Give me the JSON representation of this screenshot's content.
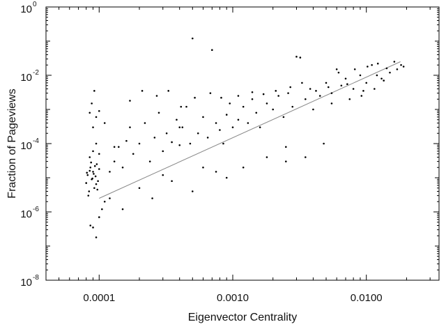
{
  "chart_data": {
    "type": "scatter",
    "title": "",
    "xlabel": "Eigenvector Centrality",
    "ylabel": "Fraction of Pageviews",
    "xscale": "log",
    "yscale": "log",
    "xlim": [
      4e-05,
      0.035
    ],
    "ylim": [
      1e-08,
      1
    ],
    "grid": false,
    "legend": "none",
    "x_ticks": [
      {
        "value": 0.0001,
        "label": "0.0001"
      },
      {
        "value": 0.001,
        "label": "0.0010"
      },
      {
        "value": 0.01,
        "label": "0.0100"
      }
    ],
    "y_ticks": [
      {
        "value": 1,
        "base": "10",
        "exp": "0"
      },
      {
        "value": 0.01,
        "base": "10",
        "exp": "-2"
      },
      {
        "value": 0.0001,
        "base": "10",
        "exp": "-4"
      },
      {
        "value": 1e-06,
        "base": "10",
        "exp": "-6"
      },
      {
        "value": 1e-08,
        "base": "10",
        "exp": "-8"
      }
    ],
    "fit_line": {
      "x": [
        0.0001,
        0.018
      ],
      "y": [
        2.5e-06,
        0.025
      ],
      "color": "#888888"
    },
    "series": [
      {
        "marker_color": "#000000",
        "points": [
          [
            8e-05,
            7e-06
          ],
          [
            8.2e-05,
            1.2e-05
          ],
          [
            8.4e-05,
            4e-06
          ],
          [
            8.6e-05,
            2e-05
          ],
          [
            8.8e-05,
            9e-06
          ],
          [
            9e-05,
            1.5e-05
          ],
          [
            9.2e-05,
            5e-06
          ],
          [
            9.4e-05,
            1.1e-05
          ],
          [
            9.6e-05,
            2.5e-05
          ],
          [
            9.8e-05,
            8e-06
          ],
          [
            0.0001,
            1.8e-05
          ],
          [
            8.3e-05,
            3e-06
          ],
          [
            8.7e-05,
            2.8e-05
          ],
          [
            9.1e-05,
            1.3e-05
          ],
          [
            9.5e-05,
            6.5e-06
          ],
          [
            8.5e-05,
            1.6e-05
          ],
          [
            8.9e-05,
            9.5e-06
          ],
          [
            9.3e-05,
            2.2e-05
          ],
          [
            8.1e-05,
            1.4e-05
          ],
          [
            9.7e-05,
            4.5e-06
          ],
          [
            8.5e-05,
            4e-05
          ],
          [
            9e-05,
            6e-05
          ],
          [
            9.5e-05,
            0.0001
          ],
          [
            0.0001,
            5e-05
          ],
          [
            9e-05,
            0.0003
          ],
          [
            8.5e-05,
            0.0008
          ],
          [
            9.5e-05,
            0.0006
          ],
          [
            0.0001,
            0.0009
          ],
          [
            8.8e-05,
            0.0015
          ],
          [
            9.2e-05,
            0.0035
          ],
          [
            8.6e-05,
            4e-07
          ],
          [
            9e-05,
            3.5e-07
          ],
          [
            9.5e-05,
            1.8e-07
          ],
          [
            0.0001,
            7e-07
          ],
          [
            0.000105,
            1.2e-06
          ],
          [
            0.00011,
            2e-06
          ],
          [
            0.00012,
            1.5e-05
          ],
          [
            0.00013,
            3e-05
          ],
          [
            0.00014,
            8e-05
          ],
          [
            0.00015,
            2e-05
          ],
          [
            0.00016,
            0.00012
          ],
          [
            0.00017,
            0.0003
          ],
          [
            0.00018,
            5e-05
          ],
          [
            0.0002,
            0.0001
          ],
          [
            0.00022,
            0.0004
          ],
          [
            0.00024,
            3e-05
          ],
          [
            0.00026,
            0.00015
          ],
          [
            0.00028,
            0.0008
          ],
          [
            0.0003,
            6e-05
          ],
          [
            0.00032,
            0.0002
          ],
          [
            0.00035,
            0.00011
          ],
          [
            0.00038,
            0.0005
          ],
          [
            0.0004,
            9e-05
          ],
          [
            0.00042,
            0.0003
          ],
          [
            0.00045,
            0.0012
          ],
          [
            0.00048,
            0.0001
          ],
          [
            0.0005,
            0.12
          ],
          [
            0.00055,
            0.0002
          ],
          [
            0.0006,
            0.0006
          ],
          [
            0.00065,
            0.00015
          ],
          [
            0.0007,
            0.055
          ],
          [
            0.00075,
            0.0004
          ],
          [
            0.0008,
            0.00025
          ],
          [
            0.00085,
            0.0001
          ],
          [
            0.0009,
            0.0007
          ],
          [
            0.001,
            0.0003
          ],
          [
            0.0011,
            0.0005
          ],
          [
            0.0012,
            0.0012
          ],
          [
            0.0013,
            0.0004
          ],
          [
            0.0014,
            0.002
          ],
          [
            0.0015,
            0.0008
          ],
          [
            0.0016,
            0.0003
          ],
          [
            0.0018,
            0.0015
          ],
          [
            0.002,
            0.001
          ],
          [
            0.0022,
            0.0025
          ],
          [
            0.0024,
            0.0006
          ],
          [
            0.0026,
            0.003
          ],
          [
            0.0028,
            0.0012
          ],
          [
            0.003,
            0.035
          ],
          [
            0.0032,
            0.033
          ],
          [
            0.0035,
            0.002
          ],
          [
            0.0038,
            0.004
          ],
          [
            0.004,
            0.001
          ],
          [
            0.0045,
            0.0025
          ],
          [
            0.0048,
            0.0001
          ],
          [
            0.005,
            0.006
          ],
          [
            0.0055,
            0.003
          ],
          [
            0.006,
            0.015
          ],
          [
            0.0065,
            0.005
          ],
          [
            0.007,
            0.008
          ],
          [
            0.008,
            0.004
          ],
          [
            0.009,
            0.01
          ],
          [
            0.01,
            0.006
          ],
          [
            0.011,
            0.02
          ],
          [
            0.012,
            0.01
          ],
          [
            0.013,
            0.008
          ],
          [
            0.015,
            0.012
          ],
          [
            0.017,
            0.015
          ],
          [
            0.019,
            0.018
          ],
          [
            0.0025,
            3e-05
          ],
          [
            0.0018,
            4e-05
          ],
          [
            0.0012,
            2e-05
          ],
          [
            0.0009,
            1e-05
          ],
          [
            0.00075,
            1.5e-05
          ],
          [
            0.0006,
            2e-05
          ],
          [
            0.0005,
            4e-06
          ],
          [
            0.00035,
            8e-06
          ],
          [
            0.00025,
            2.5e-06
          ],
          [
            0.00015,
            1.2e-06
          ],
          [
            0.00012,
            2.5e-06
          ],
          [
            0.0002,
            5e-06
          ],
          [
            0.0003,
            1.2e-05
          ],
          [
            0.0004,
            0.0003
          ],
          [
            0.0025,
            8e-05
          ],
          [
            0.0035,
            4e-05
          ],
          [
            0.0055,
            0.0015
          ],
          [
            0.0075,
            0.002
          ],
          [
            0.0095,
            0.0035
          ],
          [
            0.0115,
            0.004
          ],
          [
            0.0135,
            0.007
          ],
          [
            0.00011,
            0.0004
          ],
          [
            0.00013,
            8e-05
          ],
          [
            0.00017,
            0.0018
          ],
          [
            0.00021,
            0.0035
          ],
          [
            0.00027,
            0.0025
          ],
          [
            0.00033,
            0.0035
          ],
          [
            0.00041,
            0.0012
          ],
          [
            0.00052,
            0.0022
          ],
          [
            0.00068,
            0.003
          ],
          [
            0.00082,
            0.0022
          ],
          [
            0.00095,
            0.0015
          ],
          [
            0.0011,
            0.0025
          ],
          [
            0.0014,
            0.0032
          ],
          [
            0.0017,
            0.0028
          ],
          [
            0.0021,
            0.0035
          ],
          [
            0.0027,
            0.0045
          ],
          [
            0.0033,
            0.006
          ],
          [
            0.0042,
            0.0035
          ],
          [
            0.0052,
            0.0045
          ],
          [
            0.0062,
            0.012
          ],
          [
            0.0072,
            0.0055
          ],
          [
            0.0082,
            0.015
          ],
          [
            0.0092,
            0.0025
          ],
          [
            0.0102,
            0.018
          ],
          [
            0.0122,
            0.022
          ],
          [
            0.0142,
            0.016
          ],
          [
            0.0162,
            0.025
          ],
          [
            0.0182,
            0.02
          ]
        ]
      }
    ]
  }
}
